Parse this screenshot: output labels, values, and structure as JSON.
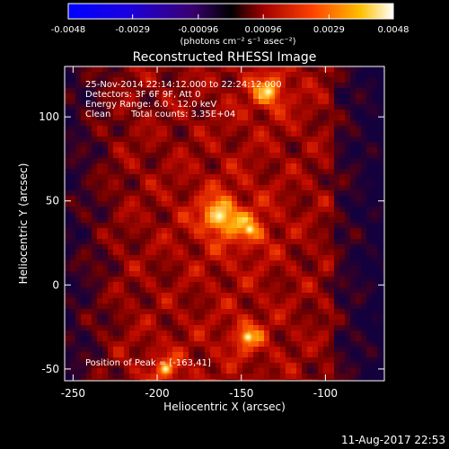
{
  "title": "Reconstructed RHESSI Image",
  "colorbar": {
    "tick_labels": [
      "-0.0048",
      "-0.0029",
      "-0.00096",
      "0.00096",
      "0.0029",
      "0.0048"
    ],
    "units": "(photons cm⁻² s⁻¹ asec⁻²)",
    "range": [
      -0.0048,
      0.0048
    ]
  },
  "annotations": {
    "time_range": "25-Nov-2014 22:14:12.000 to 22:24:12.000",
    "detectors": "Detectors: 3F 6F 9F, Att 0",
    "energy_range": "Energy Range: 6.0 - 12.0 keV",
    "algorithm": "Clean",
    "total_counts": "Total counts: 3.35E+04",
    "peak_position": "Position of Peak = [-163,41]"
  },
  "axes": {
    "xlabel": "Heliocentric X (arcsec)",
    "ylabel": "Heliocentric Y (arcsec)",
    "x_ticks": [
      "-250",
      "-200",
      "-150",
      "-100"
    ],
    "y_ticks": [
      "100",
      "50",
      "0",
      "-50"
    ],
    "xlim": [
      -255,
      -65
    ],
    "ylim": [
      -57,
      130
    ]
  },
  "footer": {
    "date": "11-Aug-2017 22:53"
  },
  "colors": {
    "background": "#000000",
    "text": "#ffffff",
    "colormap": "red-temperature"
  },
  "image_features": [
    {
      "x": -163,
      "y": 41,
      "intensity": 1.0
    },
    {
      "x": -134,
      "y": 115,
      "intensity": 0.75
    },
    {
      "x": -146,
      "y": -31,
      "intensity": 0.55
    },
    {
      "x": -195,
      "y": -50,
      "intensity": 0.45
    },
    {
      "x": -145,
      "y": 33,
      "intensity": 0.5
    }
  ]
}
